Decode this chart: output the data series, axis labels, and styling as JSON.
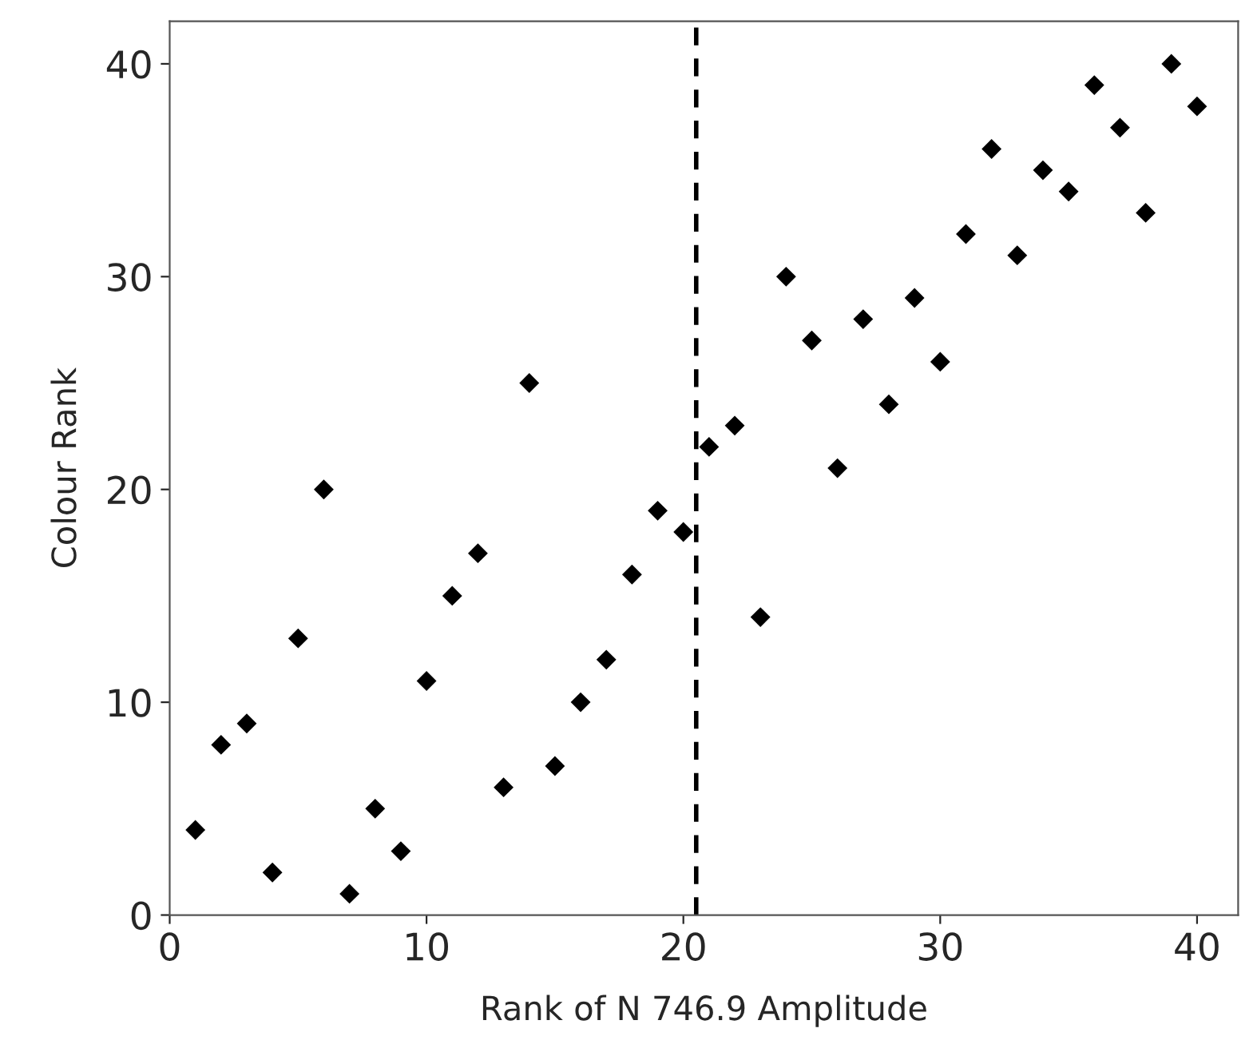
{
  "chart_data": {
    "type": "scatter",
    "xlabel": "Rank of N 746.9 Amplitude",
    "ylabel": "Colour Rank",
    "x": [
      1,
      2,
      3,
      4,
      5,
      6,
      7,
      8,
      9,
      10,
      11,
      12,
      13,
      14,
      15,
      16,
      17,
      18,
      19,
      20,
      21,
      22,
      23,
      24,
      25,
      26,
      27,
      28,
      29,
      30,
      31,
      32,
      33,
      34,
      35,
      36,
      37,
      38,
      39,
      40
    ],
    "series": [
      {
        "color": "#000000",
        "values": [
          4,
          8,
          9,
          2,
          13,
          20,
          1,
          5,
          3,
          11,
          15,
          17,
          6,
          25,
          7,
          10,
          12,
          16,
          19,
          18,
          22,
          23,
          14,
          30,
          27,
          21,
          28,
          24,
          29,
          26,
          32,
          36,
          31,
          35,
          34,
          39,
          37,
          33,
          40,
          38
        ]
      }
    ],
    "marker": "diamond",
    "xlim": [
      0,
      41.6
    ],
    "ylim": [
      0,
      42
    ],
    "xticks": [
      0,
      10,
      20,
      30,
      40
    ],
    "yticks": [
      0,
      10,
      20,
      30,
      40
    ],
    "ref_lines": [
      {
        "axis": "x",
        "value": 20.5,
        "color": "#000000",
        "line_style": "dashed"
      }
    ],
    "grid": false
  }
}
